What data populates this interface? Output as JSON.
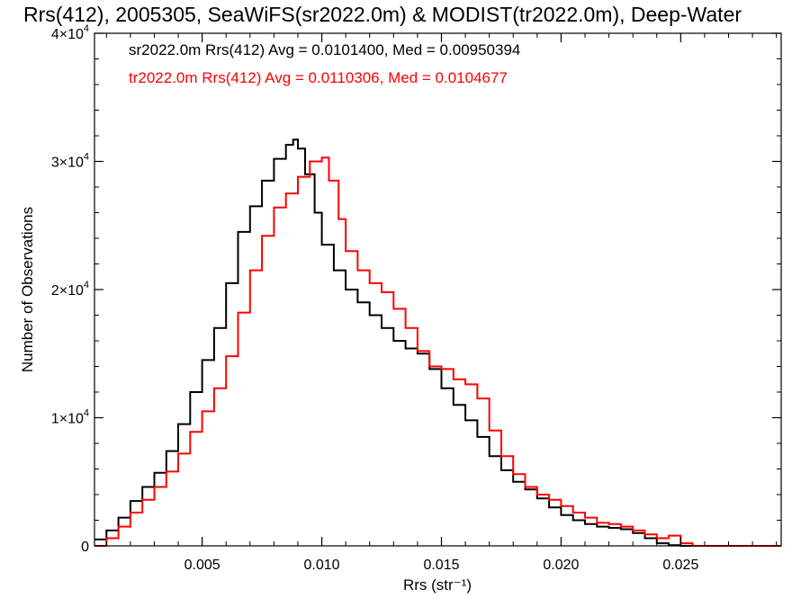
{
  "chart_data": {
    "type": "line",
    "title": "Rrs(412), 2005305, SeaWiFS(sr2022.0m) & MODIST(tr2022.0m), Deep-Water",
    "xlabel": "Rrs (str⁻¹)",
    "ylabel": "Number of Observations",
    "xlim": [
      0.0005,
      0.0292
    ],
    "ylim": [
      0,
      40000
    ],
    "x_ticks": [
      {
        "value": 0.005,
        "label": "0.005"
      },
      {
        "value": 0.01,
        "label": "0.010"
      },
      {
        "value": 0.015,
        "label": "0.015"
      },
      {
        "value": 0.02,
        "label": "0.020"
      },
      {
        "value": 0.025,
        "label": "0.025"
      }
    ],
    "y_ticks": [
      {
        "value": 0,
        "base": "0",
        "exp": ""
      },
      {
        "value": 10000,
        "base": "1×10",
        "exp": "4"
      },
      {
        "value": 20000,
        "base": "2×10",
        "exp": "4"
      },
      {
        "value": 30000,
        "base": "3×10",
        "exp": "4"
      },
      {
        "value": 40000,
        "base": "4×10",
        "exp": "4"
      }
    ],
    "annotations": [
      {
        "text": "sr2022.0m Rrs(412) Avg = 0.0101400, Med = 0.00950394",
        "color": "#000000"
      },
      {
        "text": "tr2022.0m Rrs(412) Avg = 0.0110306, Med = 0.0104677",
        "color": "#ff0000"
      }
    ],
    "series": [
      {
        "color": "#000000",
        "style": "step",
        "x": [
          0.0005,
          0.001,
          0.0015,
          0.002,
          0.0025,
          0.003,
          0.0035,
          0.004,
          0.0045,
          0.005,
          0.0055,
          0.006,
          0.0065,
          0.007,
          0.0075,
          0.008,
          0.0085,
          0.0088,
          0.009,
          0.0093,
          0.0097,
          0.01,
          0.0105,
          0.011,
          0.0115,
          0.012,
          0.0125,
          0.013,
          0.0135,
          0.014,
          0.0145,
          0.015,
          0.0155,
          0.016,
          0.0165,
          0.017,
          0.0175,
          0.018,
          0.0185,
          0.019,
          0.0195,
          0.02,
          0.0205,
          0.021,
          0.0215,
          0.022,
          0.0225,
          0.023,
          0.0235,
          0.024,
          0.0245,
          0.025,
          0.0255,
          0.026
        ],
        "y": [
          500,
          1200,
          2200,
          3500,
          4600,
          5700,
          7400,
          9500,
          12000,
          14500,
          17000,
          20500,
          24500,
          26500,
          28500,
          30200,
          31300,
          31700,
          31000,
          29000,
          26000,
          23500,
          21500,
          20000,
          19000,
          18000,
          17000,
          16000,
          15400,
          15000,
          13800,
          12300,
          11000,
          9800,
          8500,
          7000,
          5900,
          5000,
          4400,
          3700,
          3000,
          2400,
          2000,
          1700,
          1500,
          1400,
          1300,
          1000,
          600,
          200,
          50,
          0,
          0,
          0
        ]
      },
      {
        "color": "#ff0000",
        "style": "step",
        "x": [
          0.0005,
          0.001,
          0.0015,
          0.002,
          0.0025,
          0.003,
          0.0035,
          0.004,
          0.0045,
          0.005,
          0.0055,
          0.006,
          0.0065,
          0.007,
          0.0075,
          0.008,
          0.0085,
          0.009,
          0.0095,
          0.01,
          0.0103,
          0.0107,
          0.011,
          0.0115,
          0.012,
          0.0125,
          0.013,
          0.0135,
          0.014,
          0.0145,
          0.015,
          0.0155,
          0.016,
          0.0165,
          0.017,
          0.0175,
          0.018,
          0.0185,
          0.019,
          0.0195,
          0.02,
          0.0205,
          0.021,
          0.0215,
          0.022,
          0.0225,
          0.023,
          0.0235,
          0.024,
          0.0245,
          0.025,
          0.0255,
          0.026,
          0.027,
          0.028,
          0.0292
        ],
        "y": [
          0,
          600,
          1500,
          2600,
          3600,
          4600,
          5800,
          7200,
          8900,
          10500,
          12300,
          14800,
          18200,
          21500,
          24200,
          26400,
          27500,
          28800,
          30000,
          30300,
          28500,
          25500,
          23000,
          21500,
          20500,
          19800,
          18500,
          17000,
          15200,
          14000,
          13800,
          13000,
          12600,
          11500,
          9000,
          7000,
          5600,
          4600,
          4000,
          3600,
          3100,
          2600,
          2200,
          1800,
          1700,
          1500,
          1200,
          900,
          600,
          800,
          200,
          0,
          0,
          0,
          0,
          0
        ]
      }
    ],
    "grid": false,
    "legend": "top-left (text annotations)"
  }
}
